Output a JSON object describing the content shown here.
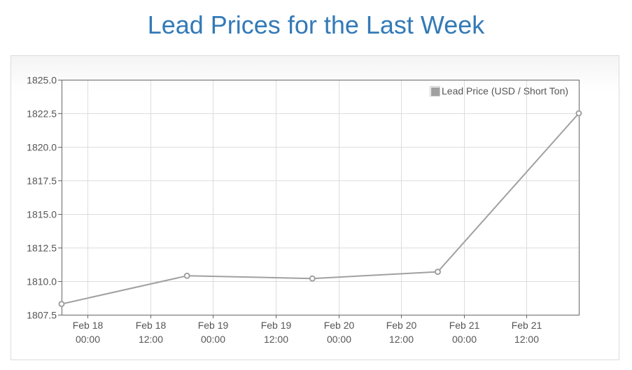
{
  "page": {
    "title": "Lead Prices for the Last Week"
  },
  "chart_data": {
    "type": "line",
    "title": "",
    "xlabel": "",
    "ylabel": "",
    "ylim": [
      1807.5,
      1825.0
    ],
    "y_ticks": [
      "1825.0",
      "1822.5",
      "1820.0",
      "1817.5",
      "1815.0",
      "1812.5",
      "1810.0",
      "1807.5"
    ],
    "x_range": [
      "Feb 17 19:00",
      "Feb 21 22:00"
    ],
    "x_ticks": [
      {
        "date": "Feb 18",
        "time": "00:00",
        "at": "2024-02-18T00:00"
      },
      {
        "date": "Feb 18",
        "time": "12:00",
        "at": "2024-02-18T12:00"
      },
      {
        "date": "Feb 19",
        "time": "00:00",
        "at": "2024-02-19T00:00"
      },
      {
        "date": "Feb 19",
        "time": "12:00",
        "at": "2024-02-19T12:00"
      },
      {
        "date": "Feb 20",
        "time": "00:00",
        "at": "2024-02-20T00:00"
      },
      {
        "date": "Feb 20",
        "time": "12:00",
        "at": "2024-02-20T12:00"
      },
      {
        "date": "Feb 21",
        "time": "00:00",
        "at": "2024-02-21T00:00"
      },
      {
        "date": "Feb 21",
        "time": "12:00",
        "at": "2024-02-21T12:00"
      }
    ],
    "grid": true,
    "legend_position": "top-right",
    "series": [
      {
        "name": "Lead Price (USD / Short Ton)",
        "color": "#a0a0a0",
        "points": [
          {
            "x": "2024-02-17T19:00",
            "y": 1808.3
          },
          {
            "x": "2024-02-18T19:00",
            "y": 1810.4
          },
          {
            "x": "2024-02-19T19:00",
            "y": 1810.2
          },
          {
            "x": "2024-02-20T19:00",
            "y": 1810.7
          },
          {
            "x": "2024-02-21T22:00",
            "y": 1822.5
          }
        ]
      }
    ]
  }
}
